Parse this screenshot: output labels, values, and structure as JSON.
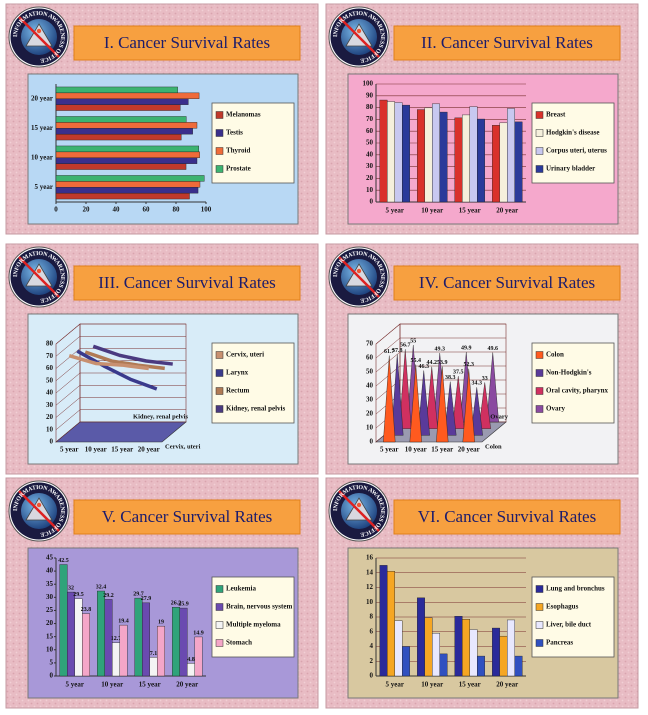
{
  "logo_text": "INFORMATION AWARENESS OFFICE",
  "chart_data": [
    {
      "type": "barh",
      "title": "I. Cancer Survival Rates",
      "categories": [
        "5 year",
        "10 year",
        "15 year",
        "20 year"
      ],
      "series": [
        {
          "name": "Melanomas",
          "color": "#c0392b",
          "values": [
            89.0,
            86.7,
            83.5,
            82.8
          ]
        },
        {
          "name": "Testis",
          "color": "#3a2f8c",
          "values": [
            94.7,
            94.0,
            91.1,
            88.2
          ]
        },
        {
          "name": "Thyroid",
          "color": "#ef6b3a",
          "values": [
            96.0,
            95.8,
            94.0,
            95.4
          ]
        },
        {
          "name": "Prostate",
          "color": "#3cb371",
          "values": [
            98.8,
            95.2,
            86.8,
            81.1
          ]
        }
      ],
      "xlim": [
        0,
        100
      ],
      "xticks": [
        0,
        20,
        40,
        60,
        80,
        100
      ],
      "grid": false,
      "background": "#b8d8f4"
    },
    {
      "type": "bar",
      "title": "II. Cancer Survival Rates",
      "categories": [
        "5 year",
        "10 year",
        "15 year",
        "20 year"
      ],
      "series": [
        {
          "name": "Breast",
          "color": "#d9312b",
          "values": [
            86.4,
            78.3,
            71.3,
            65.0
          ]
        },
        {
          "name": "Hodgkin's disease",
          "color": "#f5f0dc",
          "values": [
            85.1,
            79.8,
            73.8,
            67.1
          ]
        },
        {
          "name": "Corpus uteri, uterus",
          "color": "#c8c8f0",
          "values": [
            84.3,
            83.2,
            80.8,
            79.2
          ]
        },
        {
          "name": "Urinary bladder",
          "color": "#2a3a9a",
          "values": [
            82.1,
            76.2,
            70.3,
            67.9
          ]
        }
      ],
      "ylim": [
        0,
        100
      ],
      "yticks": [
        0,
        10,
        20,
        30,
        40,
        50,
        60,
        70,
        80,
        90,
        100
      ],
      "grid": true,
      "background": "#f5a8cc"
    },
    {
      "type": "line3d",
      "title": "III. Cancer Survival Rates",
      "categories": [
        "5 year",
        "10 year",
        "15 year",
        "20 year"
      ],
      "series": [
        {
          "name": "Cervix, uteri",
          "color": "#c89070",
          "values": [
            70.5,
            64.1,
            62.8,
            60.0
          ]
        },
        {
          "name": "Larynx",
          "color": "#3a3a8c",
          "values": [
            68.8,
            56.7,
            45.8,
            37.8
          ]
        },
        {
          "name": "Rectum",
          "color": "#b07a55",
          "values": [
            62.6,
            55.2,
            51.8,
            49.2
          ]
        },
        {
          "name": "Kidney, renal pelvis",
          "color": "#4a3a80",
          "values": [
            61.8,
            54.4,
            49.8,
            47.3
          ]
        }
      ],
      "ylim": [
        0,
        80
      ],
      "yticks": [
        0,
        10,
        20,
        30,
        40,
        50,
        60,
        70,
        80
      ],
      "grid": true,
      "background": "#d8ecf8"
    },
    {
      "type": "cone",
      "title": "IV. Cancer Survival Rates",
      "categories": [
        "5 year",
        "10 year",
        "15 year",
        "20 year"
      ],
      "series": [
        {
          "name": "Colon",
          "color": "#ff5a1f",
          "values": [
            61.7,
            55.4,
            53.9,
            52.3
          ]
        },
        {
          "name": "Non-Hodgkin's",
          "color": "#5a3a9a",
          "values": [
            57.8,
            46.3,
            38.3,
            34.3
          ]
        },
        {
          "name": "Oral cavity, pharynx",
          "color": "#d03060",
          "values": [
            56.7,
            44.2,
            37.5,
            33.0
          ]
        },
        {
          "name": "Ovary",
          "color": "#8a4aa0",
          "values": [
            55.0,
            49.3,
            49.9,
            49.6
          ]
        }
      ],
      "ylim": [
        0,
        70
      ],
      "yticks": [
        0,
        10,
        20,
        30,
        40,
        50,
        60,
        70
      ],
      "grid": true,
      "show_values": true,
      "background": "#f2f2f4"
    },
    {
      "type": "bar",
      "title": "V. Cancer Survival Rates",
      "categories": [
        "5 year",
        "10 year",
        "15 year",
        "20 year"
      ],
      "series": [
        {
          "name": "Leukemia",
          "color": "#2fa37a",
          "values": [
            42.5,
            32.4,
            29.7,
            26.2
          ]
        },
        {
          "name": "Brain, nervous system",
          "color": "#6a4ab0",
          "values": [
            32.0,
            29.2,
            27.9,
            25.9
          ]
        },
        {
          "name": "Multiple myeloma",
          "color": "#f4f4f4",
          "values": [
            29.5,
            12.7,
            7.1,
            4.8
          ]
        },
        {
          "name": "Stomach",
          "color": "#f4a6c8",
          "values": [
            23.8,
            19.4,
            19.0,
            14.9
          ]
        }
      ],
      "ylim": [
        0,
        45
      ],
      "yticks": [
        0,
        5,
        10,
        15,
        20,
        25,
        30,
        35,
        40,
        45
      ],
      "grid": false,
      "show_values": true,
      "background": "#a898d8"
    },
    {
      "type": "bar",
      "title": "VI. Cancer Survival Rates",
      "categories": [
        "5 year",
        "10 year",
        "15 year",
        "20 year"
      ],
      "series": [
        {
          "name": "Lung and bronchus",
          "color": "#2a2a9a",
          "values": [
            15.0,
            10.6,
            8.1,
            6.5
          ]
        },
        {
          "name": "Esophagus",
          "color": "#f5a623",
          "values": [
            14.2,
            7.9,
            7.7,
            5.4
          ]
        },
        {
          "name": "Liver, bile duct",
          "color": "#e8e8ff",
          "values": [
            7.5,
            5.8,
            6.3,
            7.6
          ]
        },
        {
          "name": "Pancreas",
          "color": "#3050c0",
          "values": [
            4.0,
            3.0,
            2.7,
            2.7
          ]
        }
      ],
      "ylim": [
        0,
        16
      ],
      "yticks": [
        0,
        2,
        4,
        6,
        8,
        10,
        12,
        14,
        16
      ],
      "grid": true,
      "background": "#d8c8a0"
    }
  ]
}
